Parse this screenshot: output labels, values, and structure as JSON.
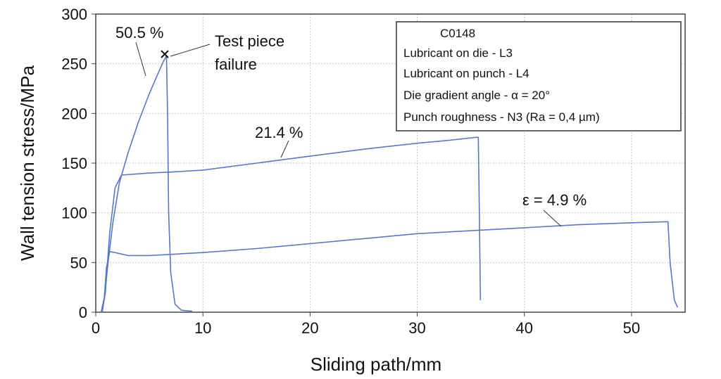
{
  "chart_data": {
    "type": "line",
    "xlabel": "Sliding path/mm",
    "ylabel": "Wall tension stress/MPa",
    "xlim": [
      0,
      55
    ],
    "ylim": [
      0,
      300
    ],
    "x_ticks": [
      "0",
      "10",
      "20",
      "30",
      "40",
      "50"
    ],
    "y_ticks": [
      "0",
      "50",
      "100",
      "150",
      "200",
      "250",
      "300"
    ],
    "grid": true,
    "color": "#5577cc",
    "legend_box": {
      "title": "C0148",
      "lines": [
        "Lubricant on die - L3",
        "Lubricant on punch - L4",
        "Die gradient angle - α = 20°",
        "Punch roughness - N3 (Ra = 0,4 µm)"
      ],
      "placement": "top-right"
    },
    "annotations": {
      "label_50": "50.5 %",
      "label_21": "21.4 %",
      "label_4": "ε = 4.9 %",
      "failure_line1": "Test piece",
      "failure_line2": "failure"
    },
    "series": [
      {
        "points": [
          [
            0.5,
            0
          ],
          [
            0.8,
            15
          ],
          [
            1.2,
            55
          ],
          [
            1.6,
            90
          ],
          [
            2.2,
            130
          ],
          [
            3,
            160
          ],
          [
            4,
            192
          ],
          [
            5,
            220
          ],
          [
            5.8,
            240
          ],
          [
            6.3,
            252
          ],
          [
            6.6,
            258
          ],
          [
            6.7,
            200
          ],
          [
            6.8,
            100
          ],
          [
            7,
            40
          ],
          [
            7.4,
            8
          ],
          [
            8,
            2
          ],
          [
            9,
            1
          ]
        ]
      },
      {
        "points": [
          [
            0.6,
            0
          ],
          [
            0.9,
            20
          ],
          [
            1.3,
            80
          ],
          [
            1.8,
            125
          ],
          [
            2.4,
            138
          ],
          [
            5,
            140
          ],
          [
            7,
            141
          ],
          [
            10,
            143
          ],
          [
            15,
            150
          ],
          [
            20,
            157
          ],
          [
            25,
            164
          ],
          [
            30,
            170
          ],
          [
            33,
            173
          ],
          [
            35.5,
            176
          ],
          [
            35.7,
            176
          ],
          [
            35.8,
            100
          ],
          [
            35.9,
            12
          ]
        ]
      },
      {
        "points": [
          [
            0.6,
            0
          ],
          [
            0.8,
            15
          ],
          [
            1,
            45
          ],
          [
            1.3,
            61
          ],
          [
            1.8,
            60
          ],
          [
            3,
            57
          ],
          [
            5,
            57
          ],
          [
            10,
            60
          ],
          [
            15,
            64
          ],
          [
            20,
            69
          ],
          [
            25,
            74
          ],
          [
            30,
            79
          ],
          [
            35,
            82
          ],
          [
            40,
            85
          ],
          [
            45,
            88
          ],
          [
            50,
            90
          ],
          [
            53,
            91
          ],
          [
            53.4,
            91
          ],
          [
            53.6,
            50
          ],
          [
            54,
            12
          ],
          [
            54.3,
            5
          ]
        ]
      }
    ]
  }
}
